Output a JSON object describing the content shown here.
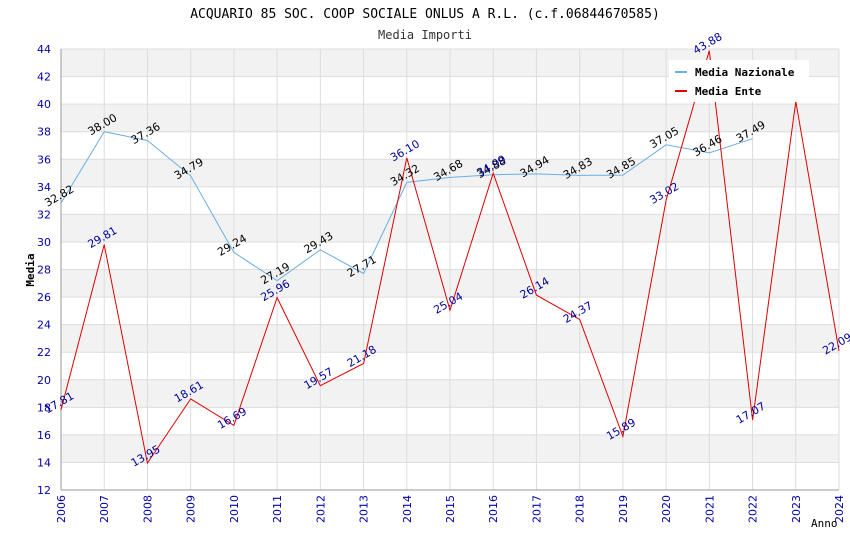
{
  "chart_data": {
    "type": "line",
    "title": "ACQUARIO 85 SOC. COOP SOCIALE ONLUS A R.L. (c.f.06844670585)",
    "subtitle": "Media Importi",
    "xlabel": "Anno",
    "ylabel": "Media",
    "ylim": [
      12,
      44
    ],
    "yticks": [
      12,
      14,
      16,
      18,
      20,
      22,
      24,
      26,
      28,
      30,
      32,
      34,
      36,
      38,
      40,
      42,
      44
    ],
    "categories": [
      "2006",
      "2007",
      "2008",
      "2009",
      "2010",
      "2011",
      "2012",
      "2013",
      "2014",
      "2015",
      "2016",
      "2017",
      "2018",
      "2019",
      "2020",
      "2021",
      "2022",
      "2023",
      "2024"
    ],
    "grid": true,
    "legend_position": "top-right",
    "series": [
      {
        "name": "Media Nazionale",
        "color": "#6aaee6",
        "label_color": "#000000",
        "values": [
          32.82,
          38.0,
          37.36,
          34.79,
          29.24,
          27.19,
          29.43,
          27.71,
          34.32,
          34.68,
          34.88,
          34.94,
          34.83,
          34.85,
          37.05,
          36.46,
          37.49,
          null,
          null
        ],
        "labels": [
          "32.82",
          "38.00",
          "37.36",
          "34.79",
          "29.24",
          "27.19",
          "29.43",
          "27.71",
          "34.32",
          "34.68",
          "34.88",
          "34.94",
          "34.83",
          "34.85",
          "37.05",
          "36.46",
          "37.49",
          null,
          null
        ]
      },
      {
        "name": "Media Ente",
        "color": "#e00000",
        "label_color": "#000099",
        "values": [
          17.81,
          29.81,
          13.95,
          18.61,
          16.69,
          25.96,
          19.57,
          21.18,
          36.1,
          25.04,
          34.99,
          26.14,
          24.37,
          15.89,
          33.02,
          43.88,
          17.07,
          40.2,
          22.09
        ],
        "labels": [
          "17.81",
          "29.81",
          "13.95",
          "18.61",
          "16.69",
          "25.96",
          "19.57",
          "21.18",
          "36.10",
          "25.04",
          "34.99",
          "26.14",
          "24.37",
          "15.89",
          "33.02",
          "43.88",
          "17.07",
          null,
          "22.09"
        ]
      }
    ]
  }
}
